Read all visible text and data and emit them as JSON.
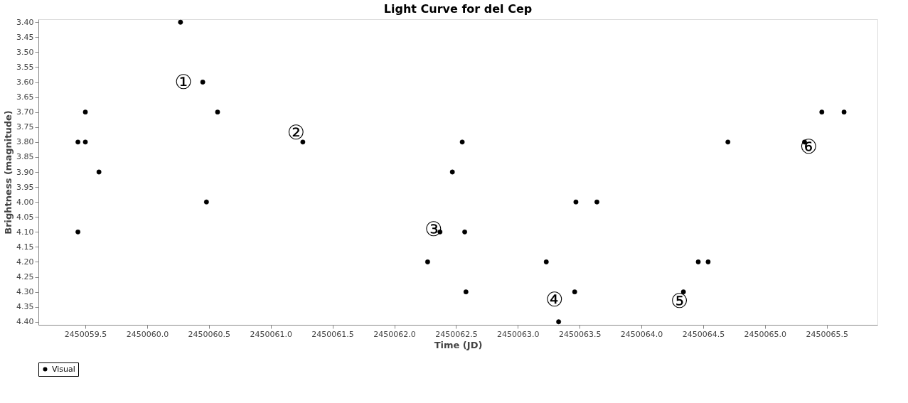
{
  "chart_data": {
    "type": "scatter",
    "title": "Light Curve for del Cep",
    "xlabel": "Time (JD)",
    "ylabel": "Brightness (magnitude)",
    "series": [
      {
        "name": "Visual",
        "color": "#000000",
        "x": [
          2450059.44,
          2450059.44,
          2450059.5,
          2450059.5,
          2450059.61,
          2450060.27,
          2450060.45,
          2450060.57,
          2450060.48,
          2450061.26,
          2450062.27,
          2450062.37,
          2450062.47,
          2450062.55,
          2450062.57,
          2450062.58,
          2450063.23,
          2450063.33,
          2450063.46,
          2450063.47,
          2450063.64,
          2450064.34,
          2450064.46,
          2450064.54,
          2450064.7,
          2450065.32,
          2450065.46,
          2450065.64
        ],
        "values": [
          4.1,
          3.8,
          3.8,
          3.7,
          3.9,
          3.4,
          3.6,
          3.7,
          4.0,
          3.8,
          4.2,
          4.1,
          3.9,
          3.8,
          4.1,
          4.3,
          4.2,
          4.4,
          4.3,
          4.0,
          4.0,
          4.3,
          4.2,
          4.2,
          3.8,
          3.8,
          3.7,
          3.7
        ]
      }
    ],
    "annotations": [
      "①",
      "②",
      "③",
      "④",
      "⑤",
      "⑥"
    ],
    "xlim": [
      2450059.12,
      2450065.91
    ],
    "ylim": [
      4.41,
      3.39
    ],
    "xticks": [
      {
        "value": 2450059.5,
        "label": "2450059.5"
      },
      {
        "value": 2450060.0,
        "label": "2450060.0"
      },
      {
        "value": 2450060.5,
        "label": "2450060.5"
      },
      {
        "value": 2450061.0,
        "label": "2450061.0"
      },
      {
        "value": 2450061.5,
        "label": "2450061.5"
      },
      {
        "value": 2450062.0,
        "label": "2450062.0"
      },
      {
        "value": 2450062.5,
        "label": "2450062.5"
      },
      {
        "value": 2450063.0,
        "label": "2450063.0"
      },
      {
        "value": 2450063.5,
        "label": "2450063.5"
      },
      {
        "value": 2450064.0,
        "label": "2450064.0"
      },
      {
        "value": 2450064.5,
        "label": "2450064.5"
      },
      {
        "value": 2450065.0,
        "label": "2450065.0"
      },
      {
        "value": 2450065.5,
        "label": "2450065.5"
      }
    ],
    "yticks": [
      {
        "value": 3.4,
        "label": "3.40"
      },
      {
        "value": 3.45,
        "label": "3.45"
      },
      {
        "value": 3.5,
        "label": "3.50"
      },
      {
        "value": 3.55,
        "label": "3.55"
      },
      {
        "value": 3.6,
        "label": "3.60"
      },
      {
        "value": 3.65,
        "label": "3.65"
      },
      {
        "value": 3.7,
        "label": "3.70"
      },
      {
        "value": 3.75,
        "label": "3.75"
      },
      {
        "value": 3.8,
        "label": "3.80"
      },
      {
        "value": 3.85,
        "label": "3.85"
      },
      {
        "value": 3.9,
        "label": "3.90"
      },
      {
        "value": 3.95,
        "label": "3.95"
      },
      {
        "value": 4.0,
        "label": "4.00"
      },
      {
        "value": 4.05,
        "label": "4.05"
      },
      {
        "value": 4.1,
        "label": "4.10"
      },
      {
        "value": 4.15,
        "label": "4.15"
      },
      {
        "value": 4.2,
        "label": "4.20"
      },
      {
        "value": 4.25,
        "label": "4.25"
      },
      {
        "value": 4.3,
        "label": "4.30"
      },
      {
        "value": 4.35,
        "label": "4.35"
      },
      {
        "value": 4.4,
        "label": "4.40"
      }
    ],
    "grid": false,
    "legend": "bottom",
    "marker": "circle"
  }
}
